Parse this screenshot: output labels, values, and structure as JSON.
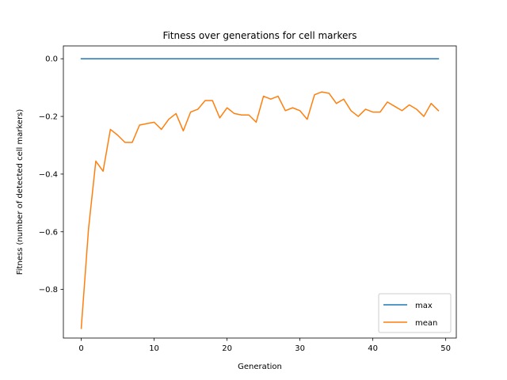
{
  "chart_data": {
    "type": "line",
    "title": "Fitness over generations for cell markers",
    "xlabel": "Generation",
    "ylabel": "Fitness (number of detected cell markers)",
    "xlim": [
      -2.45,
      51.45
    ],
    "ylim": [
      -0.9685,
      0.0445
    ],
    "xticks": [
      0,
      10,
      20,
      30,
      40,
      50
    ],
    "yticks": [
      0.0,
      -0.2,
      -0.4,
      -0.6,
      -0.8
    ],
    "ytick_labels": [
      "0.0",
      "−0.2",
      "−0.4",
      "−0.6",
      "−0.8"
    ],
    "grid": false,
    "legend_position": "lower right",
    "x": [
      0,
      1,
      2,
      3,
      4,
      5,
      6,
      7,
      8,
      9,
      10,
      11,
      12,
      13,
      14,
      15,
      16,
      17,
      18,
      19,
      20,
      21,
      22,
      23,
      24,
      25,
      26,
      27,
      28,
      29,
      30,
      31,
      32,
      33,
      34,
      35,
      36,
      37,
      38,
      39,
      40,
      41,
      42,
      43,
      44,
      45,
      46,
      47,
      48,
      49
    ],
    "series": [
      {
        "name": "max",
        "color": "#1f77b4",
        "values": [
          0,
          0,
          0,
          0,
          0,
          0,
          0,
          0,
          0,
          0,
          0,
          0,
          0,
          0,
          0,
          0,
          0,
          0,
          0,
          0,
          0,
          0,
          0,
          0,
          0,
          0,
          0,
          0,
          0,
          0,
          0,
          0,
          0,
          0,
          0,
          0,
          0,
          0,
          0,
          0,
          0,
          0,
          0,
          0,
          0,
          0,
          0,
          0,
          0,
          0
        ]
      },
      {
        "name": "mean",
        "color": "#ff7f0e",
        "values": [
          -0.935,
          -0.59,
          -0.355,
          -0.39,
          -0.245,
          -0.265,
          -0.29,
          -0.29,
          -0.23,
          -0.225,
          -0.22,
          -0.245,
          -0.21,
          -0.19,
          -0.25,
          -0.185,
          -0.175,
          -0.145,
          -0.145,
          -0.205,
          -0.17,
          -0.19,
          -0.195,
          -0.195,
          -0.22,
          -0.13,
          -0.14,
          -0.13,
          -0.18,
          -0.17,
          -0.18,
          -0.21,
          -0.125,
          -0.115,
          -0.12,
          -0.155,
          -0.14,
          -0.18,
          -0.2,
          -0.175,
          -0.185,
          -0.185,
          -0.15,
          -0.165,
          -0.18,
          -0.16,
          -0.175,
          -0.2,
          -0.155,
          -0.18
        ]
      }
    ]
  }
}
